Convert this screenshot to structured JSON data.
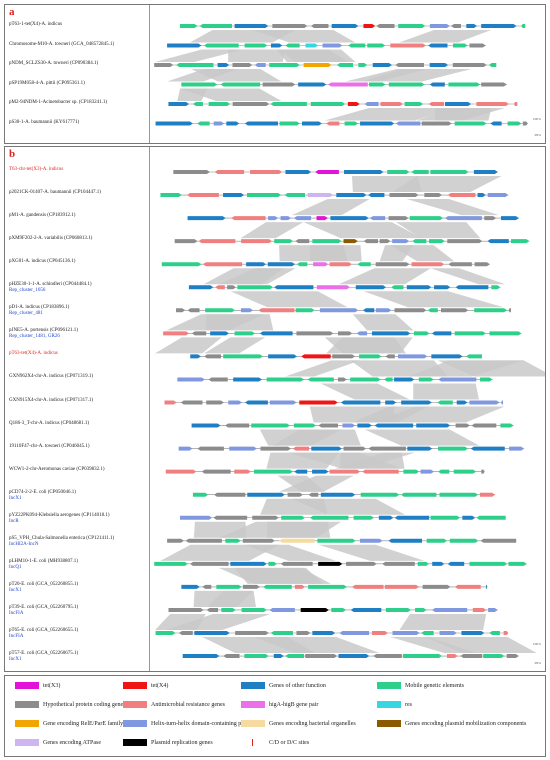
{
  "panel_a": {
    "label": "a",
    "rows": [
      {
        "name": "pT63-1-tet(X4)-A. indicus",
        "red": false
      },
      {
        "name": "Chromosome-M10-A. towneri (GCA_048572845.1)",
        "red": false
      },
      {
        "name": "pNDM_SCLZS30-A. towneri (CP090384.1)",
        "red": false
      },
      {
        "name": "pSP19M058-4-A. pittii (CP095361.1)",
        "red": false
      },
      {
        "name": "pM2-94NDM-1-Acinetobacter sp. (CP183241.1)",
        "red": false
      },
      {
        "name": "pS30-1-A. baumannii (KY617771)",
        "red": false
      }
    ]
  },
  "panel_b": {
    "label": "b",
    "rows": [
      {
        "name": "T63-chr-tet(X3)-A. indicus",
        "sub": "",
        "red": true
      },
      {
        "name": "p2021CK-01407-A. baumannii (CP104447.1)",
        "sub": "",
        "red": false
      },
      {
        "name": "pM1-A. gandensis (CP183912.1)",
        "sub": "",
        "red": false
      },
      {
        "name": "pXM9F202-2-A. variabilis (CP060813.1)",
        "sub": "",
        "red": false
      },
      {
        "name": "pXG01-A. indicus (CP045136.1)",
        "sub": "",
        "red": false
      },
      {
        "name": "pHZE30-1-1-A. schindleri (CP044484.1)",
        "sub": "Rep_cluster_1656",
        "red": false
      },
      {
        "name": "pD1-A. indicus (CP183896.1)",
        "sub": "Rep_cluster_481",
        "red": false
      },
      {
        "name": "pJNE5-A. portensis (CP096121.1)",
        "sub": "Rep_cluster_1481, GR26",
        "red": false
      },
      {
        "name": "pT63-tet(X4)-A. indicus",
        "sub": "",
        "red": true
      },
      {
        "name": "GXN962X4-chr-A. indicus (CP071319.1)",
        "sub": "",
        "red": false
      },
      {
        "name": "GXN915X4-chr-A. indicus (CP071317.1)",
        "sub": "",
        "red": false
      },
      {
        "name": "Q186-3_T-chr-A. indicus (CP048681.1)",
        "sub": "",
        "red": false
      },
      {
        "name": "19110F47-chr-A. towneri (CP046045.1)",
        "sub": "",
        "red": false
      },
      {
        "name": "WCW1-2-chr-Aeromonas caviae (CP039832.1)",
        "sub": "",
        "red": false
      },
      {
        "name": "pCD74-2-2-E. coli (CP050046.1)",
        "sub": "IncX1",
        "red": false
      },
      {
        "name": "pYZ22PK094-Klebsiella aerogenes (CP114018.1)",
        "sub": "IncR",
        "red": false
      },
      {
        "name": "pS5_VPH_Chula-Salmonella enterica (CP121411.1)",
        "sub": "IncHI2A-IncN",
        "red": false
      },
      {
        "name": "pLHM10-1-E. coli (MH938807.1)",
        "sub": "IncQ1",
        "red": false
      },
      {
        "name": "pT20-E. coli (GCA_052260855.1)",
        "sub": "IncX1",
        "red": false
      },
      {
        "name": "pT39-E. coli (GCA_052260795.1)",
        "sub": "IncFIA",
        "red": false
      },
      {
        "name": "pT65-E. coli (GCA_052260655.1)",
        "sub": "IncFIA",
        "red": false
      },
      {
        "name": "pT57-E. coli (GCA_052260675.1)",
        "sub": "IncX1",
        "red": false
      }
    ]
  },
  "legend": [
    {
      "label": "tet(X3)",
      "color": "#e312d8",
      "kind": "box"
    },
    {
      "label": "tet(X4)",
      "color": "#f01414",
      "kind": "box"
    },
    {
      "label": "Genes of other function",
      "color": "#1f7fc4",
      "kind": "box"
    },
    {
      "label": "Mobile genetic elements",
      "color": "#2ecf8a",
      "kind": "box"
    },
    {
      "label": "Hypothetical protein coding genes",
      "color": "#8c8c8c",
      "kind": "box"
    },
    {
      "label": "Antimicrobial resistance genes",
      "color": "#f08080",
      "kind": "box"
    },
    {
      "label": "higA-higB gene pair",
      "color": "#ea6fe8",
      "kind": "box"
    },
    {
      "label": "res",
      "color": "#38d6e0",
      "kind": "box"
    },
    {
      "label": "Gene encoding RelE/ParE family toxin",
      "color": "#f2a400",
      "kind": "box"
    },
    {
      "label": "Helix-turn-helix domain-containing protein",
      "color": "#7f98e0",
      "kind": "box"
    },
    {
      "label": "Genes encoding bacterial organelles",
      "color": "#f6dba0",
      "kind": "box"
    },
    {
      "label": "Genes encoding plasmid mobilization components",
      "color": "#8a5a00",
      "kind": "box"
    },
    {
      "label": "Genes encoding ATPase",
      "color": "#cdb5ef",
      "kind": "box"
    },
    {
      "label": "Plasmid replication genes",
      "color": "#000000",
      "kind": "box"
    },
    {
      "label": "C/D or D/C sites",
      "color": "#e3221c",
      "kind": "line"
    }
  ],
  "scale_labels": {
    "top": "100%",
    "bottom": "99%"
  }
}
